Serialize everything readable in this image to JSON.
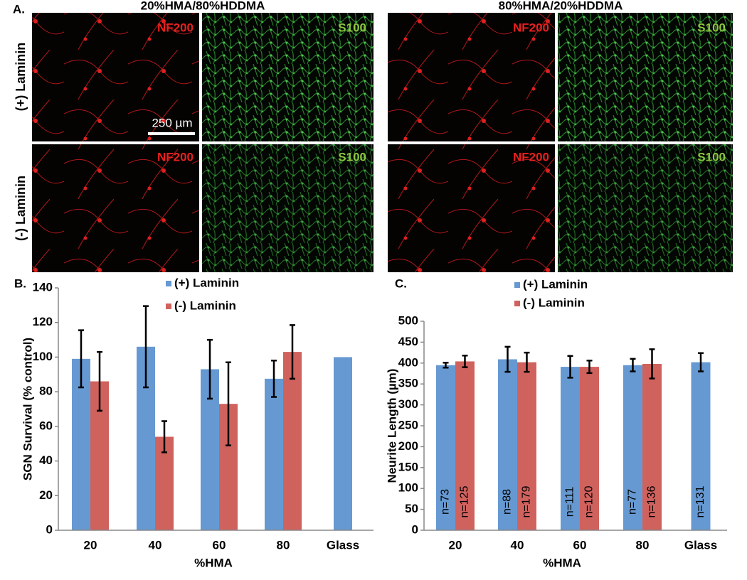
{
  "figure_a": {
    "panel_label": "A.",
    "columns": [
      "20%HMA/80%HDDMA",
      "80%HMA/20%HDDMA"
    ],
    "rows": [
      "(+) Laminin",
      "(-) Laminin"
    ],
    "stains": [
      "NF200",
      "S100"
    ],
    "scale_bar": "250 µm"
  },
  "chart_data": [
    {
      "type": "bar",
      "panel_label": "B.",
      "x_label": "%HMA",
      "y_label": "SGN Survival (% control)",
      "categories": [
        "20",
        "40",
        "60",
        "80",
        "Glass"
      ],
      "series": [
        {
          "name": "(+) Laminin",
          "color": "#6699d2",
          "values": [
            99,
            106,
            93,
            87.5,
            100
          ],
          "errors": [
            16.5,
            23.5,
            17,
            10.5,
            null
          ]
        },
        {
          "name": "(-) Laminin",
          "color": "#d0625e",
          "values": [
            86,
            54,
            73,
            103,
            null
          ],
          "errors": [
            17,
            9,
            24,
            15.5,
            null
          ]
        }
      ],
      "ylim": [
        0,
        140
      ],
      "yticks": [
        0,
        20,
        40,
        60,
        80,
        100,
        120,
        140
      ]
    },
    {
      "type": "bar",
      "panel_label": "C.",
      "x_label": "%HMA",
      "y_label": "Neurite Length (µm)",
      "categories": [
        "20",
        "40",
        "60",
        "80",
        "Glass"
      ],
      "series": [
        {
          "name": "(+) Laminin",
          "color": "#6699d2",
          "values": [
            395,
            409,
            391,
            395,
            402
          ],
          "errors": [
            6,
            30,
            26,
            15,
            22
          ],
          "n_labels": [
            "n=73",
            "n=88",
            "n=111",
            "n=77",
            "n=131"
          ]
        },
        {
          "name": "(-) Laminin",
          "color": "#d0625e",
          "values": [
            404,
            402,
            391,
            398,
            null
          ],
          "errors": [
            14,
            23,
            15,
            35,
            null
          ],
          "n_labels": [
            "n=125",
            "n=179",
            "n=120",
            "n=136",
            null
          ]
        }
      ],
      "ylim": [
        0,
        500
      ],
      "yticks": [
        0,
        50,
        100,
        150,
        200,
        250,
        300,
        350,
        400,
        450,
        500
      ]
    }
  ]
}
